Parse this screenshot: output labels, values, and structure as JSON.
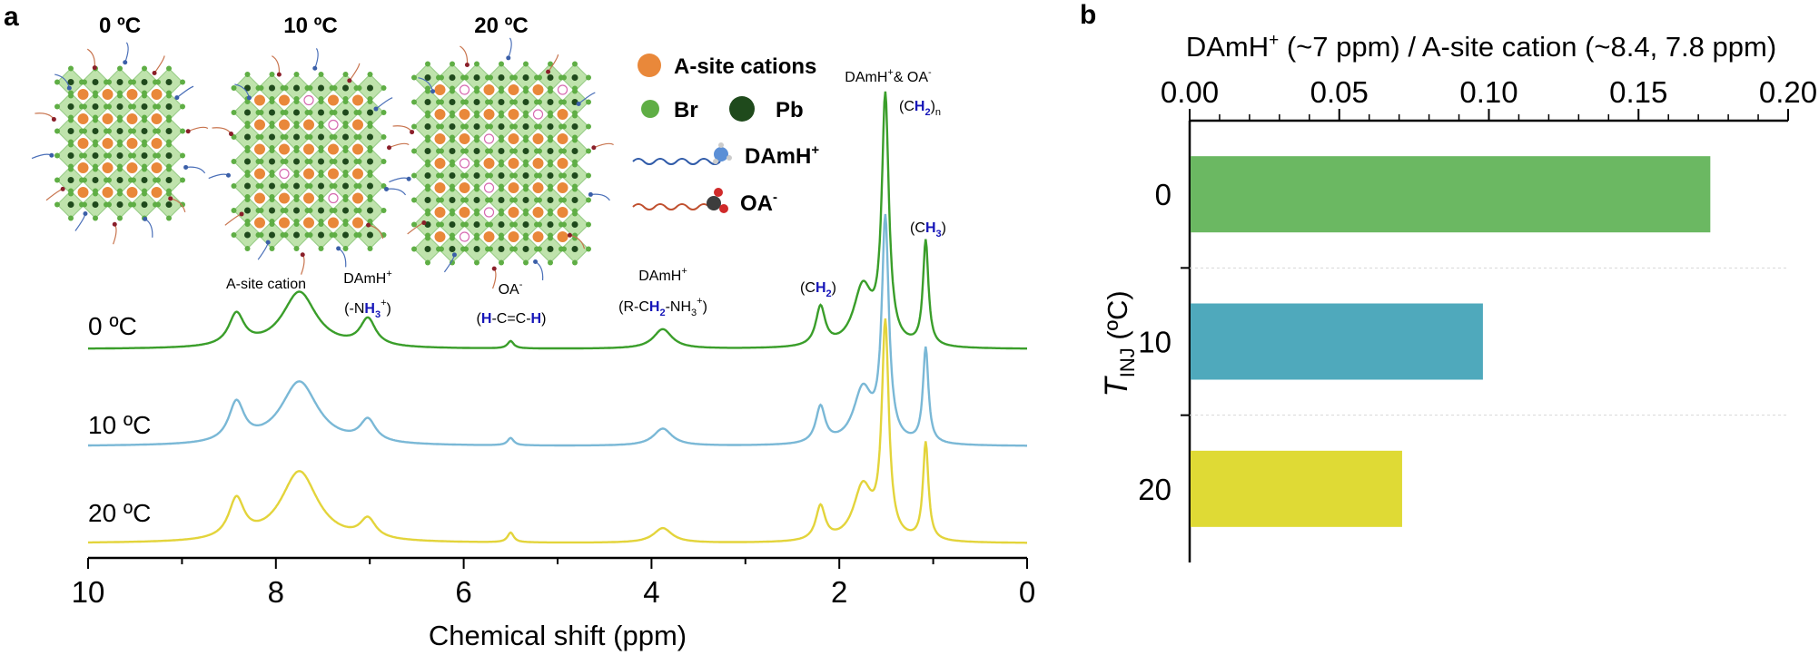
{
  "panel_labels": {
    "a": "a",
    "b": "b"
  },
  "chart_data": [
    {
      "type": "line",
      "panel": "a",
      "title": "",
      "xlabel": "Chemical shift (ppm)",
      "ylabel": "",
      "xlim": [
        10,
        0
      ],
      "x_reversed": true,
      "grid": false,
      "xticks": [
        "10",
        "8",
        "6",
        "4",
        "2",
        "0"
      ],
      "series": [
        {
          "name": "0 ºC",
          "label": "0 ºC",
          "color": "#3a9e2a",
          "baseline": 0,
          "peaks": [
            {
              "ppm": 8.42,
              "height": 0.13,
              "width": 0.1
            },
            {
              "ppm": 7.75,
              "height": 0.23,
              "width": 0.22
            },
            {
              "ppm": 7.02,
              "height": 0.11,
              "width": 0.1
            },
            {
              "ppm": 5.5,
              "height": 0.03,
              "width": 0.04
            },
            {
              "ppm": 3.88,
              "height": 0.08,
              "width": 0.12
            },
            {
              "ppm": 2.2,
              "height": 0.16,
              "width": 0.06
            },
            {
              "ppm": 1.75,
              "height": 0.24,
              "width": 0.12
            },
            {
              "ppm": 1.51,
              "height": 1.0,
              "width": 0.045
            },
            {
              "ppm": 1.08,
              "height": 0.43,
              "width": 0.035
            }
          ]
        },
        {
          "name": "10 ºC",
          "label": "10 ºC",
          "color": "#7ab8d6",
          "baseline": 0,
          "peaks": [
            {
              "ppm": 8.42,
              "height": 0.16,
              "width": 0.1
            },
            {
              "ppm": 7.75,
              "height": 0.26,
              "width": 0.24
            },
            {
              "ppm": 7.02,
              "height": 0.09,
              "width": 0.1
            },
            {
              "ppm": 5.5,
              "height": 0.03,
              "width": 0.04
            },
            {
              "ppm": 3.88,
              "height": 0.07,
              "width": 0.12
            },
            {
              "ppm": 2.2,
              "height": 0.15,
              "width": 0.06
            },
            {
              "ppm": 1.75,
              "height": 0.22,
              "width": 0.12
            },
            {
              "ppm": 1.51,
              "height": 0.9,
              "width": 0.045
            },
            {
              "ppm": 1.08,
              "height": 0.39,
              "width": 0.035
            }
          ]
        },
        {
          "name": "20 ºC",
          "label": "20 ºC",
          "color": "#e3d43b",
          "baseline": 0,
          "peaks": [
            {
              "ppm": 8.42,
              "height": 0.16,
              "width": 0.1
            },
            {
              "ppm": 7.75,
              "height": 0.29,
              "width": 0.24
            },
            {
              "ppm": 7.02,
              "height": 0.08,
              "width": 0.1
            },
            {
              "ppm": 5.5,
              "height": 0.04,
              "width": 0.04
            },
            {
              "ppm": 3.88,
              "height": 0.06,
              "width": 0.12
            },
            {
              "ppm": 2.2,
              "height": 0.14,
              "width": 0.06
            },
            {
              "ppm": 1.75,
              "height": 0.22,
              "width": 0.12
            },
            {
              "ppm": 1.51,
              "height": 0.87,
              "width": 0.045
            },
            {
              "ppm": 1.08,
              "height": 0.4,
              "width": 0.035
            }
          ]
        }
      ],
      "annotations": {
        "a_site": "A-site cation",
        "damh_a": "DAmH",
        "damh_a_sup": "+",
        "nh3_a": "(-N",
        "nh3_b": "H",
        "nh3_sub": "3",
        "nh3_sup": "+",
        "nh3_c": ")",
        "oa_a": "OA",
        "oa_a_sup": "-",
        "hcch_a": "(",
        "hcch_b": "H",
        "hcch_c": "-C=C-",
        "hcch_d": "H",
        "hcch_e": ")",
        "damh_b": "DAmH",
        "damh_b_sup": "+",
        "rch_a": "(R-C",
        "rch_b": "H",
        "rch_sub": "2",
        "rch_c": "-NH",
        "rch_sub2": "3",
        "rch_sup": "+",
        "rch_d": ")",
        "ch2_a": "(C",
        "ch2_b": "H",
        "ch2_sub": "2",
        "ch2_c": ")",
        "top_a": "DAmH",
        "top_sup": "+",
        "top_b": "& OA",
        "top_sup2": "-",
        "ch2n_a": "(C",
        "ch2n_b": "H",
        "ch2n_sub": "2",
        "ch2n_c": ")",
        "ch2n_n": "n",
        "ch3_a": "(C",
        "ch3_b": "H",
        "ch3_sub": "3",
        "ch3_c": ")"
      }
    },
    {
      "type": "bar",
      "panel": "b",
      "orientation": "horizontal",
      "title": "",
      "xlabel_a": "DAmH",
      "xlabel_sup": "+",
      "xlabel_b": " (~7 ppm) / A-site cation (~8.4, 7.8 ppm)",
      "ylabel_main": "T",
      "ylabel_sub": "INJ",
      "ylabel_rest": " (ºC)",
      "xlim": [
        0,
        0.2
      ],
      "xticks": [
        "0.00",
        "0.05",
        "0.10",
        "0.15",
        "0.20"
      ],
      "x_axis_position": "top",
      "categories": [
        "0",
        "10",
        "20"
      ],
      "values": [
        0.174,
        0.098,
        0.071
      ],
      "colors": [
        "#6bb862",
        "#4fa9bc",
        "#dfda35"
      ],
      "grid": "horizontal dashed separators"
    }
  ],
  "illustration": {
    "temperature_titles": [
      "0 ºC",
      "10 ºC",
      "20 ºC"
    ],
    "legend": {
      "a_site": "A-site cations",
      "br": "Br",
      "pb": "Pb",
      "damh": "DAmH",
      "damh_sup": "+",
      "oa": "OA",
      "oa_sup": "-"
    },
    "colors": {
      "cation": "#e9883a",
      "br": "#5fae45",
      "pb": "#1f4a1c",
      "octahedron": "#b9e0a4"
    }
  }
}
